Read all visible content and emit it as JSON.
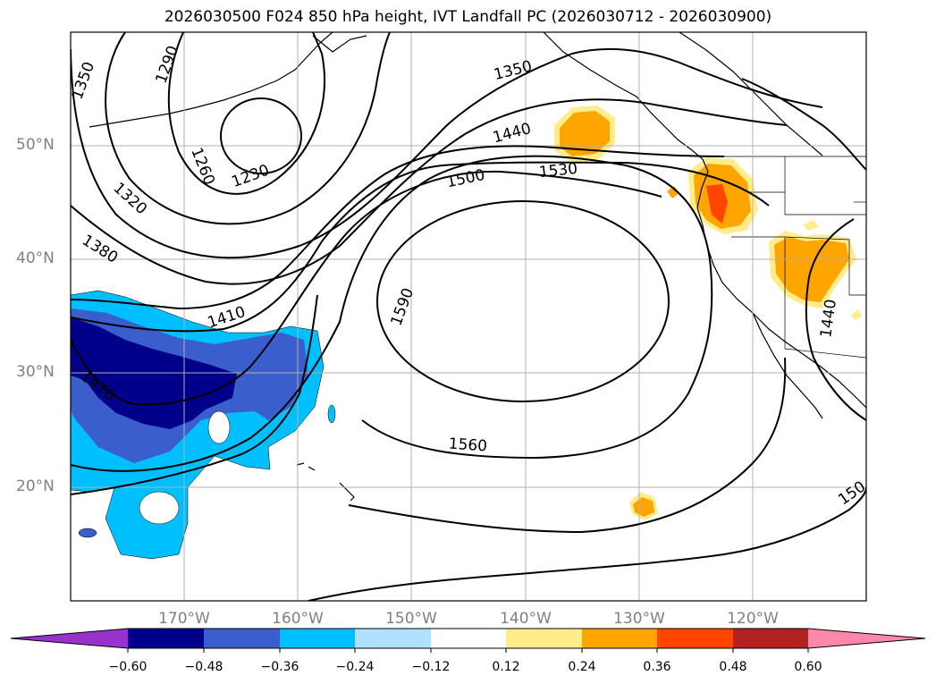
{
  "title": "2026030500 F024 850 hPa height, IVT Landfall PC (2026030712 - 2026030900)",
  "lat_labels": [
    "50°N",
    "40°N",
    "30°N",
    "20°N"
  ],
  "lon_labels": [
    "170°W",
    "160°W",
    "150°W",
    "140°W",
    "130°W",
    "120°W"
  ],
  "contour_labels": [
    "1350",
    "1290",
    "1260",
    "1230",
    "1320",
    "1380",
    "1410",
    "1470",
    "1350",
    "1440",
    "1500",
    "1530",
    "1590",
    "1560",
    "1440",
    "150"
  ],
  "colorbar": {
    "ticks": [
      "−0.60",
      "−0.48",
      "−0.36",
      "−0.24",
      "−0.12",
      "0.12",
      "0.24",
      "0.36",
      "0.48",
      "0.60"
    ],
    "colors": [
      "#9932cc",
      "#00008b",
      "#3a5fcd",
      "#00bfff",
      "#b0e2ff",
      "#ffffff",
      "#ffec8b",
      "#ffa500",
      "#ff4500",
      "#b22222",
      "#ff88aa"
    ]
  }
}
